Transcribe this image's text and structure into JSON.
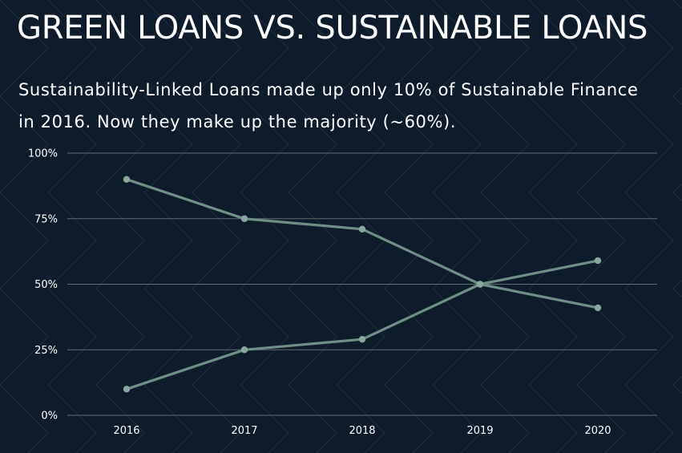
{
  "title": "GREEN LOANS VS. SUSTAINABLE LOANS",
  "subtitle": "Sustainability-Linked Loans made up only 10% of Sustainable Finance in 2016. Now they make up the majority (~60%).",
  "colors": {
    "background": "#0e1b2b",
    "line": "#6e8f86",
    "marker": "#88a89f",
    "grid": "#5e6b74",
    "text": "#ffffff"
  },
  "chart_data": {
    "type": "line",
    "title": "",
    "xlabel": "",
    "ylabel": "",
    "categories": [
      "2016",
      "2017",
      "2018",
      "2019",
      "2020"
    ],
    "series": [
      {
        "values": [
          90,
          75,
          71,
          50,
          41
        ]
      },
      {
        "values": [
          10,
          25,
          29,
          50,
          59
        ]
      }
    ],
    "ylim": [
      0,
      100
    ],
    "yticks": [
      0,
      25,
      50,
      75,
      100
    ],
    "ytick_labels": [
      "0%",
      "25%",
      "50%",
      "75%",
      "100%"
    ],
    "grid": true,
    "legend": "none"
  }
}
